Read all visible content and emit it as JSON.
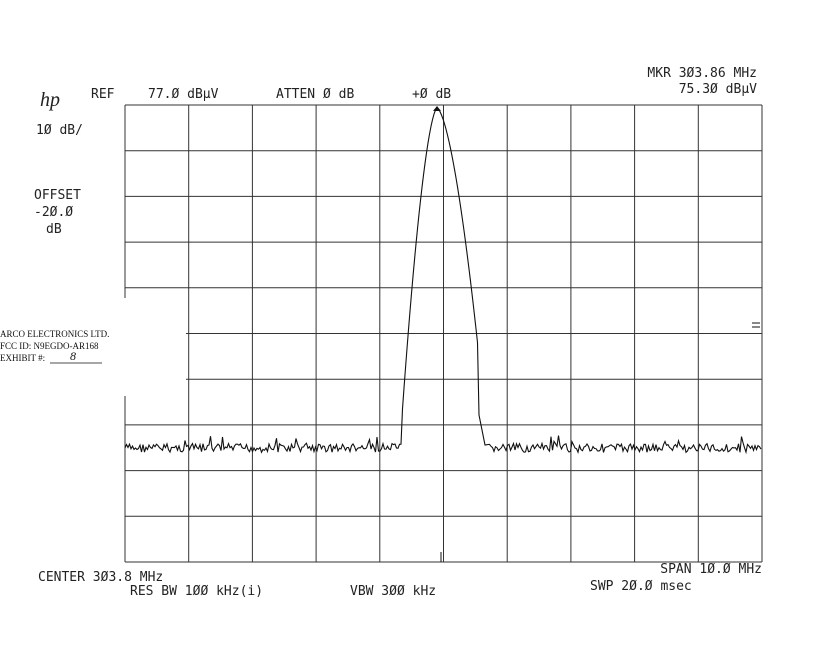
{
  "header": {
    "logo": "hp",
    "ref": "REF",
    "ref_level": "77.Ø dBµV",
    "atten": "ATTEN Ø dB",
    "offset_display": "+Ø dB",
    "marker_freq": "MKR 3Ø3.86 MHz",
    "marker_level": "75.3Ø dBµV"
  },
  "left_panel": {
    "scale": "1Ø dB/",
    "offset_label": "OFFSET",
    "offset_value": "-2Ø.Ø",
    "offset_unit": "dB"
  },
  "exhibit_label": {
    "company": "ARCO ELECTRONICS LTD.",
    "fcc_id": "FCC ID:  N9EGDO-AR168",
    "exhibit": "EXHIBIT #:",
    "exhibit_number": "8"
  },
  "footer": {
    "center": "CENTER 3Ø3.8 MHz",
    "res_bw": "RES BW 1ØØ kHz(i)",
    "vbw": "VBW 3ØØ kHz",
    "span": "SPAN 1Ø.Ø MHz",
    "sweep": "SWP 2Ø.Ø msec"
  }
}
